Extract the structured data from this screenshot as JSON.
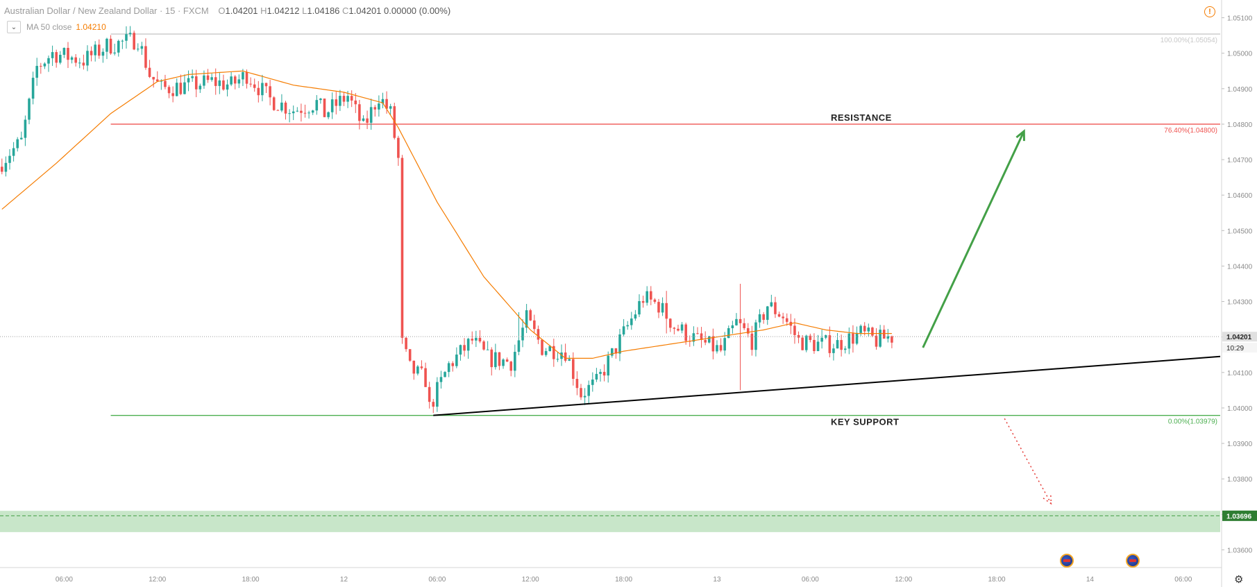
{
  "header": {
    "symbol": "Australian Dollar / New Zealand Dollar · 15 · FXCM",
    "ohlc": [
      {
        "k": "O",
        "v": "1.04201"
      },
      {
        "k": "H",
        "v": "1.04212"
      },
      {
        "k": "L",
        "v": "1.04186"
      },
      {
        "k": "C",
        "v": "1.04201"
      }
    ],
    "change": "0.00000 (0.00%)"
  },
  "indicator": {
    "label": "MA 50 close",
    "value": "1.04210"
  },
  "colors": {
    "up": "#26a69a",
    "down": "#ef5350",
    "ma": "#f57c00",
    "resistance": "#ef5350",
    "support": "#4caf50",
    "fib100": "#c8c8c8",
    "arrow_up": "#43a047",
    "arrow_down": "#e53935",
    "trendline": "#000000",
    "zone": "#c8e6c9",
    "zone_line": "#43a047"
  },
  "icons": {
    "warning": "warning-icon",
    "settings": "gear-icon",
    "collapse": "chevron-down-icon",
    "event": "australia-flag-icon"
  },
  "chart_data": {
    "type": "candlestick",
    "ylim": [
      1.0355,
      1.0515
    ],
    "y_ticks": [
      "1.05100",
      "1.05000",
      "1.04900",
      "1.04800",
      "1.04700",
      "1.04600",
      "1.04500",
      "1.04400",
      "1.04300",
      "1.04200",
      "1.04100",
      "1.04000",
      "1.03900",
      "1.03800",
      "1.03700",
      "1.03600"
    ],
    "x_labels": [
      {
        "i": 16,
        "label": "06:00"
      },
      {
        "i": 40,
        "label": "12:00"
      },
      {
        "i": 64,
        "label": "18:00"
      },
      {
        "i": 88,
        "label": "12"
      },
      {
        "i": 112,
        "label": "06:00"
      },
      {
        "i": 136,
        "label": "12:00"
      },
      {
        "i": 160,
        "label": "18:00"
      },
      {
        "i": 184,
        "label": "13"
      },
      {
        "i": 208,
        "label": "06:00"
      },
      {
        "i": 232,
        "label": "12:00"
      },
      {
        "i": 256,
        "label": "18:00"
      },
      {
        "i": 280,
        "label": "14"
      },
      {
        "i": 304,
        "label": "06:00"
      }
    ],
    "n_slots": 314,
    "ma50_value": 1.0421,
    "ma_anchors": [
      [
        0,
        1.0456
      ],
      [
        14,
        1.0469
      ],
      [
        28,
        1.0483
      ],
      [
        40,
        1.0492
      ],
      [
        48,
        1.0494
      ],
      [
        62,
        1.0495
      ],
      [
        75,
        1.0491
      ],
      [
        88,
        1.0489
      ],
      [
        98,
        1.0486
      ],
      [
        102,
        1.0479
      ],
      [
        112,
        1.0458
      ],
      [
        124,
        1.0437
      ],
      [
        136,
        1.0422
      ],
      [
        145,
        1.0414
      ],
      [
        152,
        1.0414
      ],
      [
        160,
        1.0416
      ],
      [
        172,
        1.0418
      ],
      [
        184,
        1.042
      ],
      [
        196,
        1.0422
      ],
      [
        204,
        1.0424
      ],
      [
        212,
        1.0422
      ],
      [
        220,
        1.0421
      ],
      [
        229,
        1.0421
      ]
    ],
    "candles": {
      "pivots": [
        [
          0,
          1.0468
        ],
        [
          3,
          1.0472
        ],
        [
          6,
          1.0475
        ],
        [
          10,
          1.0496
        ],
        [
          14,
          1.05
        ],
        [
          22,
          1.0498
        ],
        [
          28,
          1.0502
        ],
        [
          36,
          1.0504
        ],
        [
          39,
          1.0494
        ],
        [
          42,
          1.049
        ],
        [
          50,
          1.0491
        ],
        [
          55,
          1.0492
        ],
        [
          60,
          1.0491
        ],
        [
          64,
          1.0494
        ],
        [
          70,
          1.0487
        ],
        [
          76,
          1.0484
        ],
        [
          82,
          1.0486
        ],
        [
          84,
          1.0483
        ],
        [
          90,
          1.0488
        ],
        [
          94,
          1.0479
        ],
        [
          98,
          1.0488
        ],
        [
          101,
          1.0483
        ],
        [
          103,
          1.047
        ],
        [
          104,
          1.0418
        ],
        [
          106,
          1.0411
        ],
        [
          110,
          1.0408
        ],
        [
          111,
          1.04
        ],
        [
          116,
          1.0412
        ],
        [
          122,
          1.0419
        ],
        [
          126,
          1.0414
        ],
        [
          132,
          1.0413
        ],
        [
          136,
          1.0425
        ],
        [
          140,
          1.0417
        ],
        [
          146,
          1.0416
        ],
        [
          150,
          1.0404
        ],
        [
          154,
          1.0407
        ],
        [
          158,
          1.0415
        ],
        [
          162,
          1.0423
        ],
        [
          166,
          1.0431
        ],
        [
          170,
          1.0429
        ],
        [
          174,
          1.0423
        ],
        [
          180,
          1.0419
        ],
        [
          186,
          1.0416
        ],
        [
          190,
          1.0424
        ],
        [
          194,
          1.0419
        ],
        [
          198,
          1.0429
        ],
        [
          202,
          1.0426
        ],
        [
          206,
          1.0419
        ],
        [
          210,
          1.0418
        ],
        [
          216,
          1.0418
        ],
        [
          222,
          1.0421
        ],
        [
          226,
          1.0419
        ],
        [
          229,
          1.042
        ]
      ],
      "count": 230,
      "wick_spikes": [
        [
          190,
          1.0435,
          1.0405
        ],
        [
          171,
          1.0433,
          1.0421
        ],
        [
          133,
          1.0427,
          1.0419
        ]
      ]
    },
    "levels": [
      {
        "name": "fib-100",
        "label": "100.00%(1.05054)",
        "value": 1.05054,
        "from": 28,
        "color": "#c8c8c8"
      },
      {
        "name": "resistance",
        "label": "76.40%(1.04800)",
        "value": 1.048,
        "from": 28,
        "color": "#ef5350",
        "text": "RESISTANCE"
      },
      {
        "name": "key-support",
        "label": "0.00%(1.03979)",
        "value": 1.03979,
        "from": 28,
        "color": "#4caf50",
        "text": "KEY SUPPORT"
      }
    ],
    "current_price": {
      "value": 1.04201,
      "label": "1.04201",
      "timer": "10:29"
    },
    "target_zone": {
      "low": 1.0365,
      "high": 1.0371,
      "center": 1.03696,
      "label": "1.03696"
    },
    "trendline": {
      "p1": [
        111,
        1.03979
      ],
      "p2": [
        314,
        1.04145
      ]
    },
    "arrow_up": {
      "p1": [
        237,
        1.0417
      ],
      "p2": [
        263,
        1.0478
      ]
    },
    "arrow_down": {
      "p1": [
        258,
        1.0397
      ],
      "p2": [
        270,
        1.0373
      ]
    },
    "events": [
      274,
      291
    ]
  }
}
